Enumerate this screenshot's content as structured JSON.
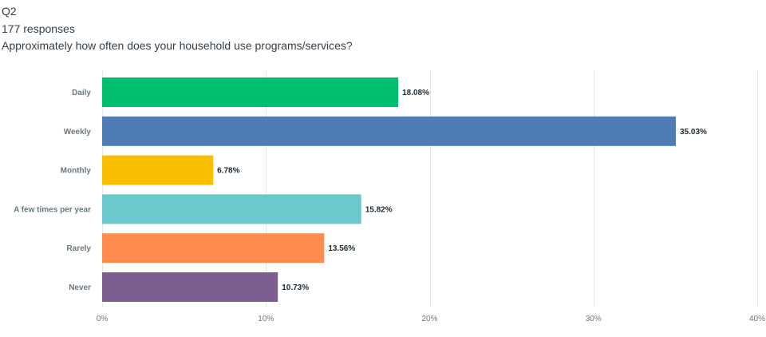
{
  "question": {
    "number": "Q2",
    "responses": "177 responses",
    "text": "Approximately how often does your household use programs/services?"
  },
  "chart_data": {
    "type": "bar",
    "orientation": "horizontal",
    "categories": [
      "Daily",
      "Weekly",
      "Monthly",
      "A few times per year",
      "Rarely",
      "Never"
    ],
    "values": [
      18.08,
      35.03,
      6.78,
      15.82,
      13.56,
      10.73
    ],
    "value_labels": [
      "18.08%",
      "35.03%",
      "6.78%",
      "15.82%",
      "13.56%",
      "10.73%"
    ],
    "colors": [
      "#00bf6f",
      "#507cb6",
      "#f9be00",
      "#6bc8cd",
      "#ff8b4f",
      "#7d5e90"
    ],
    "xlim": [
      0,
      40
    ],
    "ticks": [
      0,
      10,
      20,
      30,
      40
    ],
    "tick_labels": [
      "0%",
      "10%",
      "20%",
      "30%",
      "40%"
    ],
    "grid": true,
    "legend": "none"
  }
}
